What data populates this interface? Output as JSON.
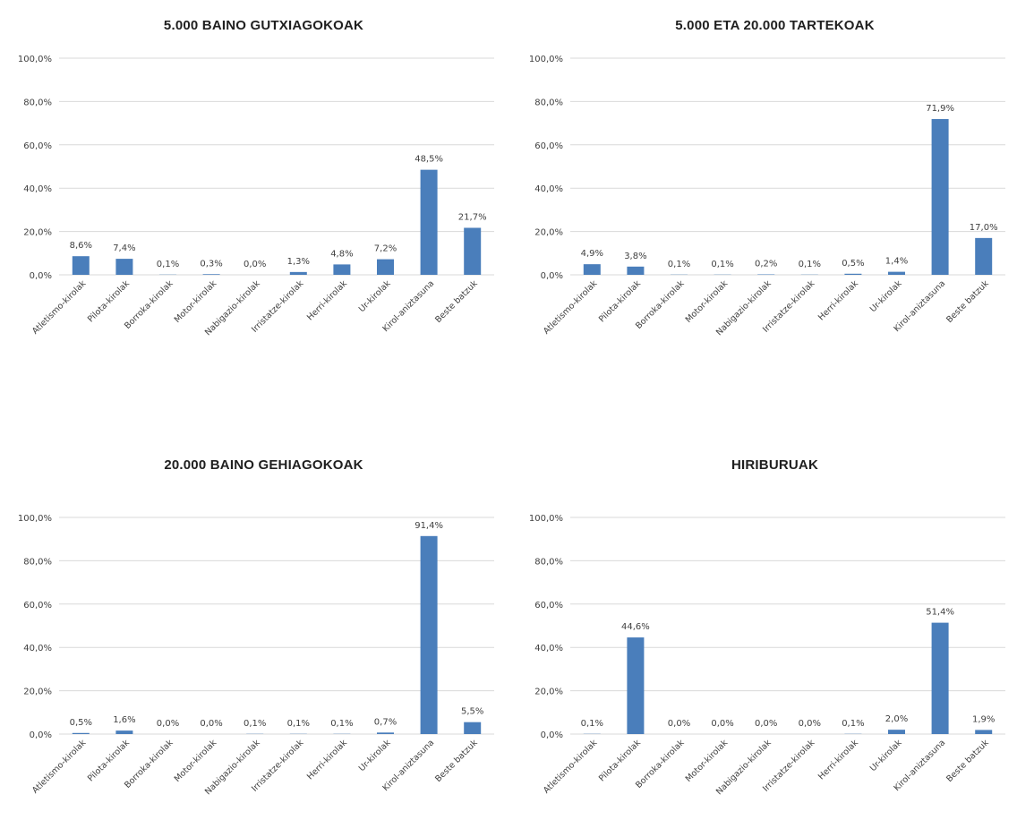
{
  "colors": {
    "bar": "#4a7ebb",
    "grid": "#d9d9d9",
    "text": "#404040"
  },
  "chart_data": [
    {
      "type": "bar",
      "title": "5.000 BAINO GUTXIAGOKOAK",
      "categories": [
        "Atletismo-kirolak",
        "Pilota-kirolak",
        "Borroka-kirolak",
        "Motor-kirolak",
        "Nabigazio-kirolak",
        "Irristatze-kirolak",
        "Herri-kirolak",
        "Ur-kirolak",
        "Kirol-aniztasuna",
        "Beste batzuk"
      ],
      "values": [
        8.6,
        7.4,
        0.1,
        0.3,
        0.0,
        1.3,
        4.8,
        7.2,
        48.5,
        21.7
      ],
      "data_labels": [
        "8,6%",
        "7,4%",
        "0,1%",
        "0,3%",
        "0,0%",
        "1,3%",
        "4,8%",
        "7,2%",
        "48,5%",
        "21,7%"
      ],
      "ylim": [
        0,
        100
      ],
      "yticks": [
        "0,0%",
        "20,0%",
        "40,0%",
        "60,0%",
        "80,0%",
        "100,0%"
      ],
      "xlabel": "",
      "ylabel": "",
      "grid": true
    },
    {
      "type": "bar",
      "title": "5.000 ETA 20.000 TARTEKOAK",
      "categories": [
        "Atletismo-kirolak",
        "Pilota-kirolak",
        "Borroka-kirolak",
        "Motor-kirolak",
        "Nabigazio-kirolak",
        "Irristatze-kirolak",
        "Herri-kirolak",
        "Ur-kirolak",
        "Kirol-aniztasuna",
        "Beste batzuk"
      ],
      "values": [
        4.9,
        3.8,
        0.1,
        0.1,
        0.2,
        0.1,
        0.5,
        1.4,
        71.9,
        17.0
      ],
      "data_labels": [
        "4,9%",
        "3,8%",
        "0,1%",
        "0,1%",
        "0,2%",
        "0,1%",
        "0,5%",
        "1,4%",
        "71,9%",
        "17,0%"
      ],
      "ylim": [
        0,
        100
      ],
      "yticks": [
        "0,0%",
        "20,0%",
        "40,0%",
        "60,0%",
        "80,0%",
        "100,0%"
      ],
      "xlabel": "",
      "ylabel": "",
      "grid": true
    },
    {
      "type": "bar",
      "title": "20.000 BAINO GEHIAGOKOAK",
      "categories": [
        "Atletismo-kirolak",
        "Pilota-kirolak",
        "Borroka-kirolak",
        "Motor-kirolak",
        "Nabigazio-kirolak",
        "Irristatze-kirolak",
        "Herri-kirolak",
        "Ur-kirolak",
        "Kirol-aniztasuna",
        "Beste batzuk"
      ],
      "values": [
        0.5,
        1.6,
        0.0,
        0.0,
        0.1,
        0.1,
        0.1,
        0.7,
        91.4,
        5.5
      ],
      "data_labels": [
        "0,5%",
        "1,6%",
        "0,0%",
        "0,0%",
        "0,1%",
        "0,1%",
        "0,1%",
        "0,7%",
        "91,4%",
        "5,5%"
      ],
      "ylim": [
        0,
        100
      ],
      "yticks": [
        "0,0%",
        "20,0%",
        "40,0%",
        "60,0%",
        "80,0%",
        "100,0%"
      ],
      "xlabel": "",
      "ylabel": "",
      "grid": true
    },
    {
      "type": "bar",
      "title": "HIRIBURUAK",
      "categories": [
        "Atletismo-kirolak",
        "Pilota-kirolak",
        "Borroka-kirolak",
        "Motor-kirolak",
        "Nabigazio-kirolak",
        "Irristatze-kirolak",
        "Herri-kirolak",
        "Ur-kirolak",
        "Kirol-aniztasuna",
        "Beste batzuk"
      ],
      "values": [
        0.1,
        44.6,
        0.0,
        0.0,
        0.0,
        0.0,
        0.1,
        2.0,
        51.4,
        1.9
      ],
      "data_labels": [
        "0,1%",
        "44,6%",
        "0,0%",
        "0,0%",
        "0,0%",
        "0,0%",
        "0,1%",
        "2,0%",
        "51,4%",
        "1,9%"
      ],
      "ylim": [
        0,
        100
      ],
      "yticks": [
        "0,0%",
        "20,0%",
        "40,0%",
        "60,0%",
        "80,0%",
        "100,0%"
      ],
      "xlabel": "",
      "ylabel": "",
      "grid": true
    }
  ]
}
